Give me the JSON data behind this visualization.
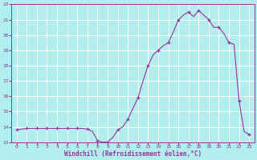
{
  "hours": [
    0,
    0.5,
    1,
    1.5,
    2,
    2.5,
    3,
    3.5,
    4,
    4.5,
    5,
    5.5,
    6,
    6.5,
    7,
    7.5,
    8,
    8.5,
    9,
    9.5,
    10,
    10.5,
    11,
    11.5,
    12,
    12.5,
    13,
    13.5,
    14,
    14.5,
    15,
    15.5,
    16,
    16.5,
    17,
    17.5,
    18,
    18.5,
    19,
    19.5,
    20,
    20.5,
    21,
    21.5,
    22,
    22.5,
    23
  ],
  "values": [
    13.8,
    13.85,
    13.9,
    13.9,
    13.9,
    13.9,
    13.9,
    13.9,
    13.9,
    13.9,
    13.9,
    13.9,
    13.9,
    13.9,
    13.85,
    13.7,
    13.1,
    13.0,
    13.0,
    13.3,
    13.8,
    14.0,
    14.5,
    15.2,
    15.9,
    17.0,
    18.0,
    18.7,
    19.0,
    19.3,
    19.5,
    20.2,
    21.0,
    21.3,
    21.5,
    21.2,
    21.6,
    21.3,
    21.0,
    20.5,
    20.5,
    20.1,
    19.5,
    19.4,
    15.7,
    13.7,
    13.5
  ],
  "marker_hours": [
    0,
    1,
    2,
    3,
    4,
    5,
    6,
    7,
    8,
    9,
    10,
    11,
    12,
    13,
    14,
    15,
    16,
    17,
    18,
    19,
    20,
    21,
    22,
    23
  ],
  "marker_values": [
    13.8,
    13.9,
    13.9,
    13.9,
    13.9,
    13.9,
    13.9,
    13.85,
    13.1,
    13.0,
    13.8,
    14.5,
    15.9,
    18.0,
    19.0,
    19.5,
    21.0,
    21.5,
    21.6,
    21.0,
    20.5,
    19.5,
    15.7,
    13.5
  ],
  "ylim": [
    13,
    22
  ],
  "xlim": [
    -0.5,
    23.5
  ],
  "yticks": [
    13,
    14,
    15,
    16,
    17,
    18,
    19,
    20,
    21,
    22
  ],
  "xticks": [
    0,
    1,
    2,
    3,
    4,
    5,
    6,
    7,
    8,
    9,
    10,
    11,
    12,
    13,
    14,
    15,
    16,
    17,
    18,
    19,
    20,
    21,
    22,
    23
  ],
  "xlabel": "Windchill (Refroidissement éolien,°C)",
  "line_color": "#993399",
  "marker_color": "#993399",
  "bg_color": "#b2eeee",
  "grid_color": "#ffffff",
  "tick_color": "#993399",
  "label_color": "#993399"
}
